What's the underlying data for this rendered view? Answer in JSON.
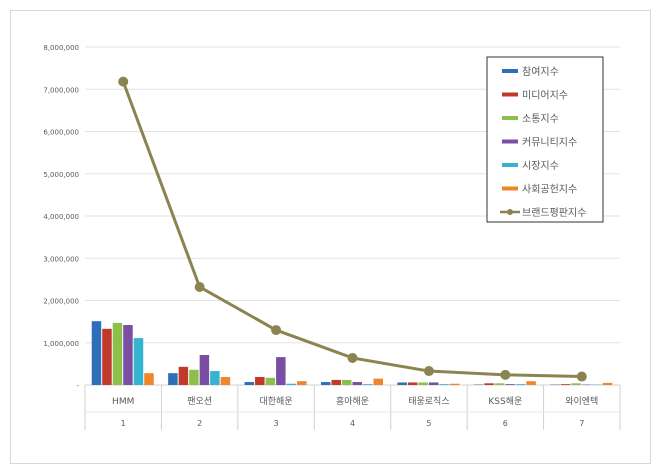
{
  "chart_data": {
    "type": "bar",
    "title": "",
    "xlabel": "",
    "ylabel": "",
    "ylim": [
      0,
      8000000
    ],
    "yticks": [
      "-",
      "1,000,000",
      "2,000,000",
      "3,000,000",
      "4,000,000",
      "5,000,000",
      "6,000,000",
      "7,000,000",
      "8,000,000"
    ],
    "categories": [
      "HMM",
      "팬오션",
      "대한해운",
      "흥아해운",
      "태웅로직스",
      "KSS해운",
      "와이엔텍"
    ],
    "ranks": [
      "1",
      "2",
      "3",
      "4",
      "5",
      "6",
      "7"
    ],
    "grid": true,
    "legend_position": "top-right",
    "series": [
      {
        "name": "참여지수",
        "type": "bar",
        "color": "#2e6fba",
        "values": [
          1510000,
          280000,
          70000,
          70000,
          60000,
          10000,
          10000
        ]
      },
      {
        "name": "미디어지수",
        "type": "bar",
        "color": "#c0392b",
        "values": [
          1330000,
          430000,
          190000,
          120000,
          60000,
          40000,
          20000
        ]
      },
      {
        "name": "소통지수",
        "type": "bar",
        "color": "#8cc04b",
        "values": [
          1470000,
          360000,
          170000,
          120000,
          60000,
          40000,
          40000
        ]
      },
      {
        "name": "커뮤니티지수",
        "type": "bar",
        "color": "#7a4fa3",
        "values": [
          1420000,
          710000,
          660000,
          70000,
          60000,
          20000,
          10000
        ]
      },
      {
        "name": "시장지수",
        "type": "bar",
        "color": "#35b3cf",
        "values": [
          1110000,
          330000,
          30000,
          20000,
          20000,
          20000,
          10000
        ]
      },
      {
        "name": "사회공헌지수",
        "type": "bar",
        "color": "#f0862b",
        "values": [
          280000,
          190000,
          90000,
          150000,
          30000,
          90000,
          50000
        ]
      },
      {
        "name": "브랜드평판지수",
        "type": "line",
        "color": "#8b8450",
        "values": [
          7180000,
          2320000,
          1300000,
          640000,
          330000,
          240000,
          200000
        ]
      }
    ]
  }
}
